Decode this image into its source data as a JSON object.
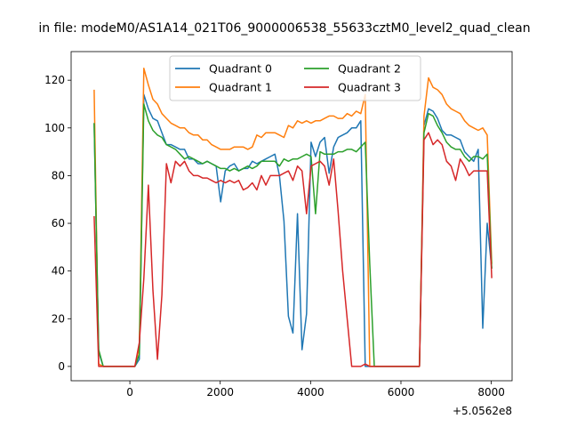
{
  "chart_data": {
    "type": "line",
    "title": "in file: modeM0/AS1A14_021T06_9000006538_55633cztM0_level2_quad_clean",
    "xlabel": "",
    "ylabel": "",
    "x_offset_label": "+5.0562e8",
    "xlim": [
      -1300,
      8460
    ],
    "ylim": [
      -6,
      132
    ],
    "x_ticks": [
      0,
      2000,
      4000,
      6000,
      8000
    ],
    "x_tick_labels": [
      "0",
      "2000",
      "4000",
      "6000",
      "8000"
    ],
    "y_ticks": [
      0,
      20,
      40,
      60,
      80,
      100,
      120
    ],
    "y_tick_labels": [
      "0",
      "20",
      "40",
      "60",
      "80",
      "100",
      "120"
    ],
    "grid": false,
    "legend": {
      "placement": "top-center",
      "columns": 2
    },
    "series": [
      {
        "name": "Quadrant 0",
        "color": "#1f77b4",
        "x": [
          -790,
          -690,
          -590,
          -490,
          -390,
          -290,
          -190,
          -90,
          10,
          110,
          210,
          310,
          410,
          510,
          610,
          710,
          810,
          910,
          1010,
          1110,
          1210,
          1310,
          1410,
          1510,
          1610,
          1710,
          1810,
          1910,
          2010,
          2110,
          2210,
          2310,
          2410,
          2510,
          2610,
          2710,
          2810,
          2910,
          3010,
          3110,
          3210,
          3310,
          3410,
          3510,
          3610,
          3710,
          3810,
          3910,
          4010,
          4110,
          4210,
          4310,
          4410,
          4510,
          4610,
          4710,
          4810,
          4910,
          5010,
          5110,
          5210,
          5310,
          5410,
          5510,
          5610,
          5710,
          5810,
          5910,
          6010,
          6110,
          6210,
          6310,
          6410,
          6510,
          6610,
          6710,
          6810,
          6910,
          7010,
          7110,
          7210,
          7310,
          7410,
          7510,
          7610,
          7710,
          7810,
          7910,
          8010
        ],
        "values": [
          102,
          6,
          0,
          0,
          0,
          0,
          0,
          0,
          0,
          0,
          3,
          114,
          108,
          104,
          103,
          98,
          93,
          93,
          92,
          91,
          91,
          87,
          87,
          85,
          85,
          86,
          85,
          84,
          69,
          82,
          84,
          85,
          82,
          83,
          83,
          86,
          85,
          86,
          87,
          88,
          89,
          80,
          61,
          21,
          14,
          64,
          7,
          22,
          94,
          88,
          94,
          96,
          81,
          92,
          96,
          97,
          98,
          100,
          100,
          103,
          0,
          0,
          0,
          0,
          0,
          0,
          0,
          0,
          0,
          0,
          0,
          0,
          0,
          101,
          108,
          107,
          104,
          99,
          97,
          97,
          96,
          95,
          90,
          88,
          86,
          91,
          16,
          60,
          41
        ]
      },
      {
        "name": "Quadrant 1",
        "color": "#ff7f0e",
        "x": [
          -790,
          -690,
          -590,
          -490,
          -390,
          -290,
          -190,
          -90,
          10,
          110,
          210,
          310,
          410,
          510,
          610,
          710,
          810,
          910,
          1010,
          1110,
          1210,
          1310,
          1410,
          1510,
          1610,
          1710,
          1810,
          1910,
          2010,
          2110,
          2210,
          2310,
          2410,
          2510,
          2610,
          2710,
          2810,
          2910,
          3010,
          3110,
          3210,
          3310,
          3410,
          3510,
          3610,
          3710,
          3810,
          3910,
          4010,
          4110,
          4210,
          4310,
          4410,
          4510,
          4610,
          4710,
          4810,
          4910,
          5010,
          5110,
          5210,
          5310,
          5410,
          5510,
          5610,
          5710,
          5810,
          5910,
          6010,
          6110,
          6210,
          6310,
          6410,
          6510,
          6610,
          6710,
          6810,
          6910,
          7010,
          7110,
          7210,
          7310,
          7410,
          7510,
          7610,
          7710,
          7810,
          7910,
          8010
        ],
        "values": [
          116,
          1,
          0,
          0,
          0,
          0,
          0,
          0,
          0,
          0,
          8,
          125,
          118,
          112,
          110,
          106,
          104,
          102,
          101,
          100,
          100,
          98,
          97,
          97,
          95,
          95,
          93,
          92,
          91,
          91,
          91,
          92,
          92,
          92,
          91,
          92,
          97,
          96,
          98,
          98,
          98,
          97,
          96,
          101,
          100,
          103,
          102,
          103,
          102,
          103,
          103,
          104,
          105,
          105,
          104,
          104,
          106,
          105,
          107,
          106,
          114,
          0,
          0,
          0,
          0,
          0,
          0,
          0,
          0,
          0,
          0,
          0,
          0,
          105,
          121,
          117,
          116,
          114,
          110,
          108,
          107,
          106,
          103,
          101,
          100,
          99,
          100,
          97,
          43
        ]
      },
      {
        "name": "Quadrant 2",
        "color": "#2ca02c",
        "x": [
          -790,
          -690,
          -590,
          -490,
          -390,
          -290,
          -190,
          -90,
          10,
          110,
          210,
          310,
          410,
          510,
          610,
          710,
          810,
          910,
          1010,
          1110,
          1210,
          1310,
          1410,
          1510,
          1610,
          1710,
          1810,
          1910,
          2010,
          2110,
          2210,
          2310,
          2410,
          2510,
          2610,
          2710,
          2810,
          2910,
          3010,
          3110,
          3210,
          3310,
          3410,
          3510,
          3610,
          3710,
          3810,
          3910,
          4010,
          4110,
          4210,
          4310,
          4410,
          4510,
          4610,
          4710,
          4810,
          4910,
          5010,
          5110,
          5210,
          5310,
          5410,
          5510,
          5610,
          5710,
          5810,
          5910,
          6010,
          6110,
          6210,
          6310,
          6410,
          6510,
          6610,
          6710,
          6810,
          6910,
          7010,
          7110,
          7210,
          7310,
          7410,
          7510,
          7610,
          7710,
          7810,
          7910,
          8010
        ],
        "values": [
          102,
          7,
          0,
          0,
          0,
          0,
          0,
          0,
          0,
          0,
          5,
          110,
          103,
          99,
          97,
          96,
          93,
          92,
          91,
          89,
          87,
          88,
          87,
          86,
          85,
          86,
          85,
          84,
          83,
          83,
          82,
          83,
          82,
          83,
          84,
          83,
          84,
          86,
          86,
          86,
          86,
          84,
          87,
          86,
          87,
          87,
          88,
          89,
          88,
          64,
          90,
          89,
          89,
          89,
          90,
          90,
          91,
          91,
          90,
          92,
          94,
          43,
          0,
          0,
          0,
          0,
          0,
          0,
          0,
          0,
          0,
          0,
          0,
          98,
          106,
          105,
          101,
          98,
          94,
          92,
          91,
          91,
          88,
          86,
          88,
          88,
          87,
          89,
          41
        ]
      },
      {
        "name": "Quadrant 3",
        "color": "#d62728",
        "x": [
          -790,
          -690,
          -590,
          -490,
          -390,
          -290,
          -190,
          -90,
          10,
          110,
          210,
          310,
          410,
          510,
          610,
          710,
          810,
          910,
          1010,
          1110,
          1210,
          1310,
          1410,
          1510,
          1610,
          1710,
          1810,
          1910,
          2010,
          2110,
          2210,
          2310,
          2410,
          2510,
          2610,
          2710,
          2810,
          2910,
          3010,
          3110,
          3210,
          3310,
          3410,
          3510,
          3610,
          3710,
          3810,
          3910,
          4010,
          4110,
          4210,
          4310,
          4410,
          4510,
          4610,
          4710,
          4810,
          4910,
          5010,
          5110,
          5210,
          5310,
          5410,
          5510,
          5610,
          5710,
          5810,
          5910,
          6010,
          6110,
          6210,
          6310,
          6410,
          6510,
          6610,
          6710,
          6810,
          6910,
          7010,
          7110,
          7210,
          7310,
          7410,
          7510,
          7610,
          7710,
          7810,
          7910,
          8010
        ],
        "values": [
          63,
          0,
          0,
          0,
          0,
          0,
          0,
          0,
          0,
          0,
          10,
          37,
          76,
          32,
          3,
          30,
          85,
          77,
          86,
          84,
          86,
          82,
          80,
          80,
          79,
          79,
          78,
          77,
          78,
          77,
          78,
          77,
          78,
          74,
          75,
          77,
          74,
          80,
          76,
          80,
          80,
          80,
          81,
          82,
          78,
          84,
          82,
          64,
          84,
          85,
          86,
          84,
          76,
          87,
          65,
          40,
          20,
          0,
          0,
          0,
          1,
          0,
          0,
          0,
          0,
          0,
          0,
          0,
          0,
          0,
          0,
          0,
          0,
          95,
          98,
          93,
          95,
          93,
          86,
          84,
          78,
          87,
          84,
          80,
          82,
          82,
          82,
          82,
          37
        ]
      }
    ]
  }
}
